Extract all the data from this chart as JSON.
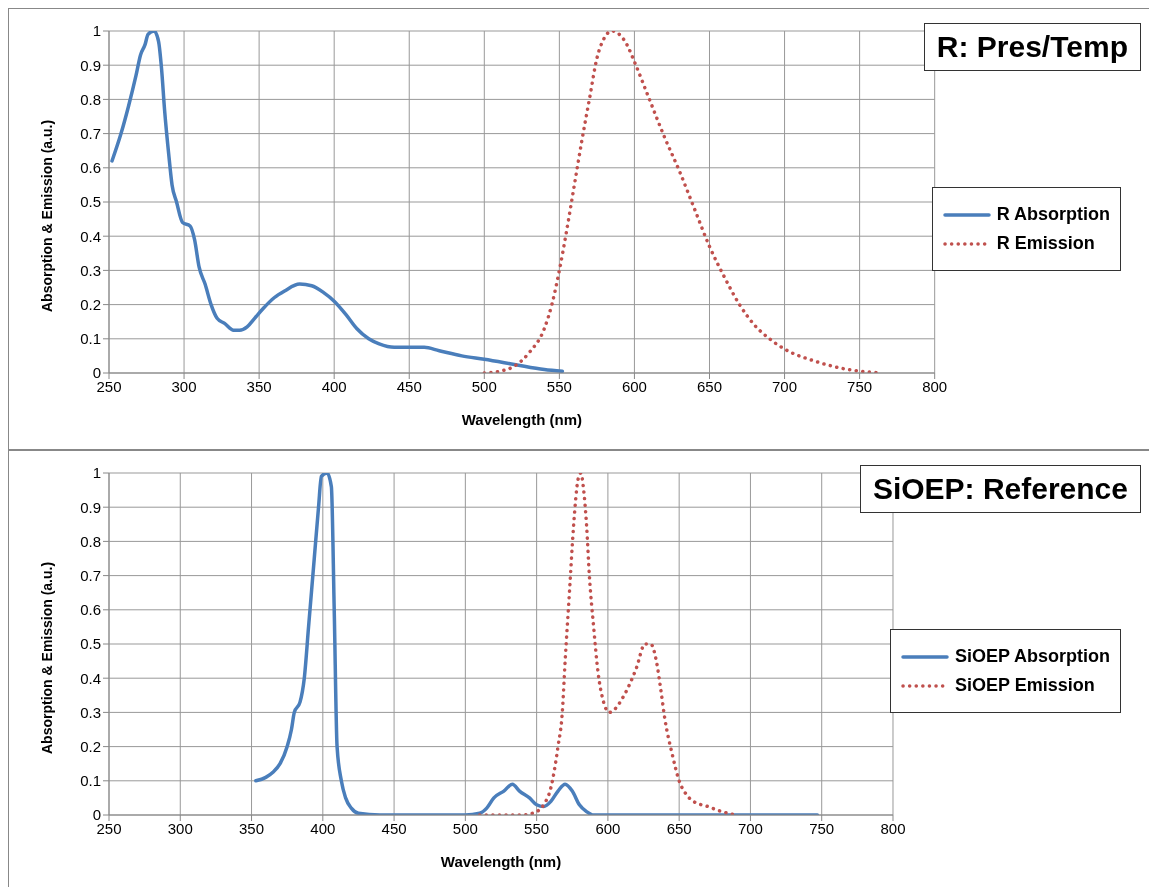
{
  "chart_data": [
    {
      "type": "line",
      "title": "R: Pres/Temp",
      "xlabel": "Wavelength (nm)",
      "ylabel": "Absorption & Emission (a.u.)",
      "xlim": [
        250,
        800
      ],
      "xticks": [
        250,
        300,
        350,
        400,
        450,
        500,
        550,
        600,
        650,
        700,
        750,
        800
      ],
      "ylim": [
        0,
        1
      ],
      "yticks": [
        0,
        0.1,
        0.2,
        0.3,
        0.4,
        0.5,
        0.6,
        0.7,
        0.8,
        0.9,
        1
      ],
      "grid": true,
      "legend": "right",
      "marker": "none",
      "series": [
        {
          "name": "R Absorption",
          "color": "#4a7ebb",
          "line_style": "solid",
          "x": [
            252,
            258,
            263,
            268,
            271,
            274,
            276,
            280,
            283,
            285,
            287,
            290,
            292,
            295,
            299,
            304,
            307,
            310,
            314,
            318,
            322,
            327,
            333,
            337,
            342,
            347,
            353,
            360,
            367,
            377,
            385,
            393,
            400,
            408,
            415,
            423,
            430,
            440,
            460,
            470,
            485,
            500,
            520,
            540,
            552
          ],
          "values": [
            0.62,
            0.7,
            0.78,
            0.87,
            0.93,
            0.96,
            0.99,
            1.0,
            0.97,
            0.89,
            0.77,
            0.63,
            0.55,
            0.5,
            0.44,
            0.43,
            0.39,
            0.31,
            0.26,
            0.2,
            0.16,
            0.145,
            0.125,
            0.125,
            0.135,
            0.16,
            0.19,
            0.22,
            0.24,
            0.26,
            0.255,
            0.235,
            0.21,
            0.17,
            0.13,
            0.1,
            0.085,
            0.075,
            0.075,
            0.065,
            0.05,
            0.04,
            0.025,
            0.01,
            0.005
          ]
        },
        {
          "name": "R Emission",
          "color": "#c0504d",
          "line_style": "dotted",
          "x": [
            500,
            510,
            520,
            530,
            540,
            545,
            550,
            555,
            560,
            565,
            570,
            575,
            580,
            585,
            590,
            595,
            600,
            610,
            620,
            630,
            640,
            650,
            660,
            670,
            680,
            690,
            700,
            720,
            740,
            765
          ],
          "values": [
            0,
            0.005,
            0.02,
            0.06,
            0.13,
            0.2,
            0.3,
            0.42,
            0.55,
            0.68,
            0.8,
            0.92,
            0.98,
            1.0,
            0.99,
            0.96,
            0.91,
            0.8,
            0.69,
            0.59,
            0.48,
            0.37,
            0.28,
            0.2,
            0.14,
            0.1,
            0.07,
            0.035,
            0.012,
            0
          ]
        }
      ]
    },
    {
      "type": "line",
      "title": "SiOEP: Reference",
      "xlabel": "Wavelength (nm)",
      "ylabel": "Absorption & Emission (a.u.)",
      "xlim": [
        250,
        800
      ],
      "xticks": [
        250,
        300,
        350,
        400,
        450,
        500,
        550,
        600,
        650,
        700,
        750,
        800
      ],
      "ylim": [
        0,
        1
      ],
      "yticks": [
        0,
        0.1,
        0.2,
        0.3,
        0.4,
        0.5,
        0.6,
        0.7,
        0.8,
        0.9,
        1
      ],
      "grid": true,
      "legend": "right",
      "marker": "none",
      "series": [
        {
          "name": "SiOEP Absorption",
          "color": "#4a7ebb",
          "line_style": "solid",
          "x": [
            353,
            360,
            365,
            370,
            375,
            378,
            380,
            384,
            387,
            390,
            394,
            397,
            399,
            403,
            406,
            408,
            410,
            413,
            416,
            420,
            425,
            440,
            500,
            510,
            515,
            520,
            527,
            533,
            538,
            545,
            550,
            555,
            560,
            565,
            570,
            575,
            580,
            585,
            590,
            650,
            747
          ],
          "values": [
            0.1,
            0.11,
            0.125,
            0.15,
            0.2,
            0.25,
            0.3,
            0.33,
            0.4,
            0.55,
            0.75,
            0.9,
            0.99,
            1.0,
            0.96,
            0.6,
            0.2,
            0.1,
            0.05,
            0.02,
            0.005,
            0,
            0,
            0.005,
            0.02,
            0.05,
            0.07,
            0.09,
            0.07,
            0.05,
            0.03,
            0.025,
            0.04,
            0.07,
            0.09,
            0.07,
            0.03,
            0.01,
            0,
            0,
            0
          ]
        },
        {
          "name": "SiOEP Emission",
          "color": "#c0504d",
          "line_style": "dotted",
          "x": [
            510,
            540,
            550,
            555,
            560,
            565,
            568,
            570,
            573,
            576,
            579,
            581,
            583,
            585,
            587,
            590,
            593,
            597,
            601,
            605,
            610,
            615,
            620,
            626,
            630,
            634,
            637,
            640,
            645,
            650,
            655,
            660,
            670,
            680,
            690
          ],
          "values": [
            0,
            0,
            0.01,
            0.03,
            0.08,
            0.2,
            0.3,
            0.45,
            0.65,
            0.85,
            0.98,
            1.0,
            0.95,
            0.85,
            0.7,
            0.55,
            0.42,
            0.33,
            0.3,
            0.31,
            0.34,
            0.38,
            0.43,
            0.5,
            0.5,
            0.45,
            0.37,
            0.28,
            0.18,
            0.1,
            0.06,
            0.04,
            0.025,
            0.01,
            0
          ]
        }
      ]
    }
  ]
}
